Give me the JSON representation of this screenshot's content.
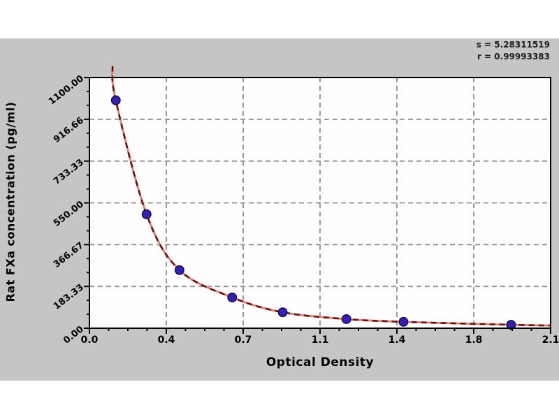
{
  "annotation": {
    "line1": "s = 5.28311519",
    "line2": "r = 0.99993383"
  },
  "chart_data": {
    "type": "scatter",
    "title": "",
    "xlabel": "Optical Density",
    "ylabel": "Rat FXa concentration (pg/ml)",
    "xlim": [
      0,
      2.1
    ],
    "ylim": [
      0,
      1100
    ],
    "grid": true,
    "legend": "none",
    "x_ticks": {
      "values": [
        0,
        0.35,
        0.7,
        1.05,
        1.4,
        1.75,
        2.1
      ],
      "labels": [
        "0.0",
        "0.4",
        "0.7",
        "1.1",
        "1.4",
        "1.8",
        "2.1"
      ],
      "minor_between": 3
    },
    "y_ticks": {
      "values": [
        0,
        183.33,
        366.67,
        550,
        733.33,
        916.66,
        1100
      ],
      "labels": [
        "0.00",
        "183.33",
        "366.67",
        "550.00",
        "733.33",
        "916.66",
        "1100.00"
      ],
      "minor_between": 2
    },
    "series": [
      {
        "name": "standard-points",
        "type": "scatter",
        "points": [
          [
            0.12,
            1000
          ],
          [
            0.26,
            500
          ],
          [
            0.41,
            255
          ],
          [
            0.65,
            135
          ],
          [
            0.88,
            70
          ],
          [
            1.17,
            40
          ],
          [
            1.43,
            28
          ],
          [
            1.92,
            15
          ]
        ]
      },
      {
        "name": "fitted-curve",
        "type": "line",
        "points": [
          [
            0.105,
            1150
          ],
          [
            0.12,
            1000
          ],
          [
            0.26,
            500
          ],
          [
            0.41,
            255
          ],
          [
            0.65,
            135
          ],
          [
            0.88,
            70
          ],
          [
            1.17,
            40
          ],
          [
            1.43,
            28
          ],
          [
            1.92,
            15
          ],
          [
            2.1,
            12
          ]
        ]
      }
    ],
    "annotations": [
      "s = 5.28311519",
      "r = 0.99993383"
    ]
  },
  "colors": {
    "panel_bg": "#c5c5c5",
    "plot_bg": "#fffdfd",
    "frame": "#000000",
    "grid": "#8f8f8f",
    "curve_base": "#e0837a",
    "curve_dash": "#5f1310",
    "marker_fill": "#3520b4",
    "marker_edge": "#14084f"
  }
}
